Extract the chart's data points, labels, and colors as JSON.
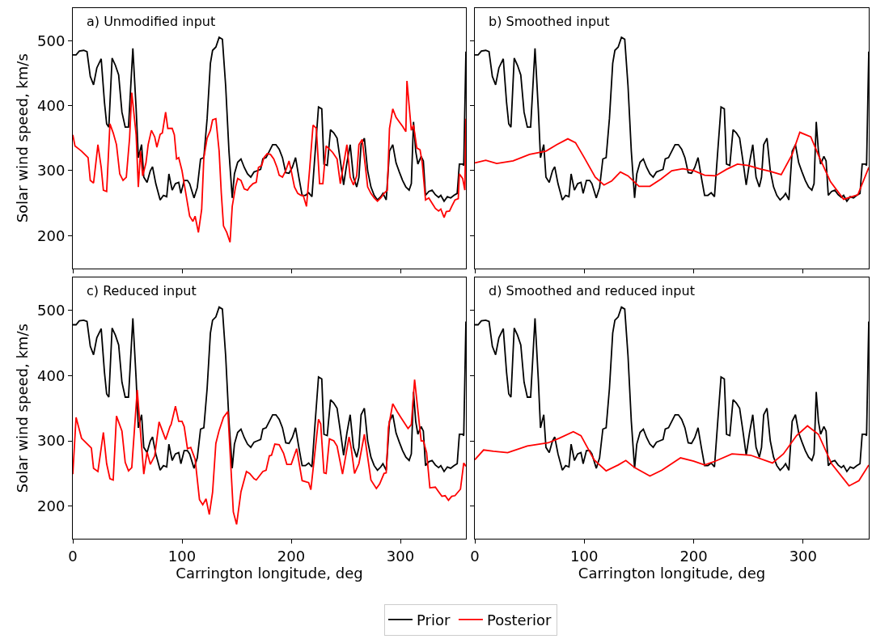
{
  "chart_data": [
    {
      "type": "line",
      "title": "a) Unmodified input",
      "ylabel": "Solar wind speed, km/s",
      "xlim": [
        0,
        360
      ],
      "ylim": [
        150,
        550
      ],
      "xticks": [
        0,
        100,
        200,
        300
      ],
      "yticks": [
        200,
        300,
        400,
        500
      ],
      "tick_labels": "y",
      "legend": "bottom",
      "series": [
        {
          "name": "Prior",
          "color": "#000000",
          "x": [
            0,
            3,
            6,
            10,
            13,
            16,
            19,
            22,
            26,
            29,
            31,
            33,
            36,
            39,
            42,
            45,
            48,
            51,
            55,
            58,
            60,
            63,
            65,
            68,
            71,
            73,
            76,
            80,
            83,
            86,
            88,
            91,
            94,
            97,
            99,
            102,
            105,
            107,
            111,
            114,
            117,
            120,
            123,
            126,
            128,
            131,
            134,
            137,
            140,
            143,
            146,
            148,
            151,
            154,
            157,
            160,
            163,
            166,
            169,
            172,
            174,
            177,
            180,
            183,
            186,
            189,
            192,
            195,
            198,
            201,
            204,
            207,
            210,
            213,
            216,
            219,
            222,
            225,
            228,
            230,
            233,
            236,
            239,
            242,
            245,
            248,
            251,
            254,
            257,
            260,
            262,
            264,
            267,
            270,
            273,
            276,
            279,
            282,
            284,
            287,
            290,
            293,
            296,
            299,
            302,
            305,
            308,
            310,
            312,
            314,
            316,
            319,
            321,
            323,
            326,
            329,
            332,
            335,
            337,
            340,
            343,
            346,
            349,
            352,
            354,
            357,
            358,
            360
          ],
          "values": [
            478,
            478,
            484,
            485,
            483,
            445,
            432,
            458,
            472,
            405,
            372,
            367,
            473,
            462,
            447,
            390,
            367,
            367,
            488,
            395,
            320,
            340,
            290,
            282,
            300,
            306,
            280,
            255,
            262,
            260,
            295,
            270,
            280,
            282,
            265,
            285,
            285,
            280,
            258,
            274,
            318,
            320,
            380,
            465,
            485,
            490,
            505,
            502,
            430,
            330,
            258,
            295,
            313,
            318,
            305,
            295,
            290,
            298,
            300,
            302,
            318,
            320,
            330,
            340,
            340,
            333,
            320,
            297,
            296,
            305,
            320,
            290,
            262,
            262,
            266,
            260,
            330,
            398,
            395,
            310,
            308,
            363,
            358,
            350,
            315,
            278,
            312,
            340,
            290,
            275,
            290,
            340,
            350,
            300,
            275,
            262,
            255,
            260,
            265,
            255,
            330,
            340,
            312,
            298,
            285,
            275,
            270,
            280,
            375,
            330,
            310,
            322,
            315,
            262,
            268,
            270,
            263,
            259,
            262,
            253,
            260,
            258,
            262,
            265,
            310,
            310,
            308,
            483
          ]
        },
        {
          "name": "Posterior",
          "color": "#ff0000",
          "x": [
            0,
            2,
            5,
            8,
            11,
            14,
            16,
            19,
            21,
            23,
            26,
            28,
            31,
            34,
            37,
            40,
            43,
            46,
            49,
            52,
            54,
            58,
            60,
            62,
            64,
            67,
            69,
            72,
            75,
            77,
            80,
            82,
            85,
            87,
            91,
            93,
            95,
            97,
            100,
            102,
            104,
            107,
            110,
            112,
            115,
            118,
            120,
            123,
            126,
            128,
            131,
            134,
            136,
            138,
            141,
            144,
            146,
            149,
            151,
            154,
            157,
            160,
            162,
            165,
            168,
            170,
            173,
            175,
            178,
            181,
            184,
            187,
            189,
            192,
            195,
            198,
            200,
            203,
            206,
            209,
            211,
            214,
            217,
            220,
            223,
            226,
            229,
            232,
            235,
            238,
            242,
            245,
            248,
            251,
            254,
            257,
            260,
            262,
            265,
            268,
            270,
            273,
            276,
            279,
            282,
            285,
            288,
            290,
            293,
            296,
            299,
            302,
            305,
            306,
            310,
            312,
            315,
            318,
            320,
            323,
            326,
            329,
            332,
            335,
            337,
            340,
            342,
            345,
            347,
            350,
            353,
            354,
            357,
            359,
            360
          ],
          "values": [
            355,
            338,
            334,
            330,
            325,
            320,
            285,
            281,
            310,
            340,
            305,
            270,
            268,
            372,
            358,
            340,
            295,
            285,
            290,
            350,
            420,
            355,
            275,
            330,
            292,
            312,
            340,
            362,
            352,
            336,
            356,
            358,
            390,
            365,
            365,
            355,
            318,
            320,
            300,
            280,
            260,
            230,
            222,
            230,
            205,
            240,
            320,
            350,
            362,
            378,
            380,
            330,
            265,
            215,
            205,
            190,
            245,
            275,
            288,
            285,
            272,
            270,
            275,
            280,
            282,
            305,
            308,
            320,
            326,
            325,
            318,
            305,
            293,
            290,
            300,
            315,
            300,
            275,
            265,
            262,
            262,
            245,
            305,
            370,
            365,
            280,
            280,
            338,
            333,
            328,
            318,
            280,
            310,
            340,
            290,
            278,
            292,
            340,
            348,
            305,
            275,
            265,
            258,
            253,
            258,
            265,
            270,
            365,
            395,
            382,
            375,
            368,
            360,
            438,
            362,
            370,
            335,
            332,
            312,
            255,
            258,
            250,
            242,
            238,
            241,
            228,
            237,
            238,
            245,
            255,
            257,
            295,
            288,
            270,
            380
          ]
        }
      ]
    },
    {
      "type": "line",
      "title": "b) Smoothed input",
      "xlim": [
        0,
        360
      ],
      "ylim": [
        150,
        550
      ],
      "xticks": [
        0,
        100,
        200,
        300
      ],
      "yticks": [
        200,
        300,
        400,
        500
      ],
      "tick_labels": false,
      "series": [
        {
          "color": "#000000",
          "x": [
            0,
            3,
            6,
            10,
            13,
            16,
            19,
            22,
            26,
            29,
            31,
            33,
            36,
            39,
            42,
            45,
            48,
            51,
            55,
            58,
            60,
            63,
            65,
            68,
            71,
            73,
            76,
            80,
            83,
            86,
            88,
            91,
            94,
            97,
            99,
            102,
            105,
            107,
            111,
            114,
            117,
            120,
            123,
            126,
            128,
            131,
            134,
            137,
            140,
            143,
            146,
            148,
            151,
            154,
            157,
            160,
            163,
            166,
            169,
            172,
            174,
            177,
            180,
            183,
            186,
            189,
            192,
            195,
            198,
            201,
            204,
            207,
            210,
            213,
            216,
            219,
            222,
            225,
            228,
            230,
            233,
            236,
            239,
            242,
            245,
            248,
            251,
            254,
            257,
            260,
            262,
            264,
            267,
            270,
            273,
            276,
            279,
            282,
            284,
            287,
            290,
            293,
            296,
            299,
            302,
            305,
            308,
            310,
            312,
            314,
            316,
            319,
            321,
            323,
            326,
            329,
            332,
            335,
            337,
            340,
            343,
            346,
            349,
            352,
            354,
            357,
            358,
            360
          ],
          "values": [
            478,
            478,
            484,
            485,
            483,
            445,
            432,
            458,
            472,
            405,
            372,
            367,
            473,
            462,
            447,
            390,
            367,
            367,
            488,
            395,
            320,
            340,
            290,
            282,
            300,
            306,
            280,
            255,
            262,
            260,
            295,
            270,
            280,
            282,
            265,
            285,
            285,
            280,
            258,
            274,
            318,
            320,
            380,
            465,
            485,
            490,
            505,
            502,
            430,
            330,
            258,
            295,
            313,
            318,
            305,
            295,
            290,
            298,
            300,
            302,
            318,
            320,
            330,
            340,
            340,
            333,
            320,
            297,
            296,
            305,
            320,
            290,
            262,
            262,
            266,
            260,
            330,
            398,
            395,
            310,
            308,
            363,
            358,
            350,
            315,
            278,
            312,
            340,
            290,
            275,
            290,
            340,
            350,
            300,
            275,
            262,
            255,
            260,
            265,
            255,
            330,
            340,
            312,
            298,
            285,
            275,
            270,
            280,
            375,
            330,
            310,
            322,
            315,
            262,
            268,
            270,
            263,
            259,
            262,
            253,
            260,
            258,
            262,
            265,
            310,
            310,
            308,
            483
          ]
        },
        {
          "color": "#ff0000",
          "x": [
            0,
            10,
            20,
            35,
            50,
            65,
            75,
            85,
            92,
            100,
            110,
            118,
            125,
            133,
            140,
            150,
            160,
            170,
            180,
            190,
            200,
            210,
            220,
            230,
            240,
            250,
            260,
            270,
            280,
            290,
            297,
            307,
            315,
            325,
            337,
            350,
            360
          ],
          "values": [
            312,
            316,
            311,
            315,
            325,
            330,
            340,
            349,
            343,
            320,
            290,
            278,
            284,
            298,
            292,
            276,
            276,
            287,
            300,
            303,
            300,
            293,
            292,
            302,
            310,
            308,
            303,
            299,
            294,
            325,
            359,
            352,
            320,
            283,
            256,
            263,
            305
          ]
        }
      ]
    },
    {
      "type": "line",
      "title": "c) Reduced input",
      "xlabel": "Carrington longitude, deg",
      "ylabel": "Solar wind speed, km/s",
      "xlim": [
        0,
        360
      ],
      "ylim": [
        150,
        550
      ],
      "xticks": [
        0,
        100,
        200,
        300
      ],
      "yticks": [
        200,
        300,
        400,
        500
      ],
      "series": [
        {
          "color": "#000000",
          "x": [
            0,
            3,
            6,
            10,
            13,
            16,
            19,
            22,
            26,
            29,
            31,
            33,
            36,
            39,
            42,
            45,
            48,
            51,
            55,
            58,
            60,
            63,
            65,
            68,
            71,
            73,
            76,
            80,
            83,
            86,
            88,
            91,
            94,
            97,
            99,
            102,
            105,
            107,
            111,
            114,
            117,
            120,
            123,
            126,
            128,
            131,
            134,
            137,
            140,
            143,
            146,
            148,
            151,
            154,
            157,
            160,
            163,
            166,
            169,
            172,
            174,
            177,
            180,
            183,
            186,
            189,
            192,
            195,
            198,
            201,
            204,
            207,
            210,
            213,
            216,
            219,
            222,
            225,
            228,
            230,
            233,
            236,
            239,
            242,
            245,
            248,
            251,
            254,
            257,
            260,
            262,
            264,
            267,
            270,
            273,
            276,
            279,
            282,
            284,
            287,
            290,
            293,
            296,
            299,
            302,
            305,
            308,
            310,
            312,
            314,
            316,
            319,
            321,
            323,
            326,
            329,
            332,
            335,
            337,
            340,
            343,
            346,
            349,
            352,
            354,
            357,
            358,
            360
          ],
          "values": [
            478,
            478,
            484,
            485,
            483,
            445,
            432,
            458,
            472,
            405,
            372,
            367,
            473,
            462,
            447,
            390,
            367,
            367,
            488,
            395,
            320,
            340,
            290,
            282,
            300,
            306,
            280,
            255,
            262,
            260,
            295,
            270,
            280,
            282,
            265,
            285,
            285,
            280,
            258,
            274,
            318,
            320,
            380,
            465,
            485,
            490,
            505,
            502,
            430,
            330,
            258,
            295,
            313,
            318,
            305,
            295,
            290,
            298,
            300,
            302,
            318,
            320,
            330,
            340,
            340,
            333,
            320,
            297,
            296,
            305,
            320,
            290,
            262,
            262,
            266,
            260,
            330,
            398,
            395,
            310,
            308,
            363,
            358,
            350,
            315,
            278,
            312,
            340,
            290,
            275,
            290,
            340,
            350,
            300,
            275,
            262,
            255,
            260,
            265,
            255,
            330,
            340,
            312,
            298,
            285,
            275,
            270,
            280,
            375,
            330,
            310,
            322,
            315,
            262,
            268,
            270,
            263,
            259,
            262,
            253,
            260,
            258,
            262,
            265,
            310,
            310,
            308,
            483
          ]
        },
        {
          "color": "#ff0000",
          "x": [
            0,
            3,
            8,
            17,
            19,
            23,
            28,
            31,
            34,
            37,
            40,
            45,
            48,
            51,
            54,
            59,
            65,
            68,
            71,
            75,
            79,
            85,
            89,
            90,
            94,
            97,
            100,
            102,
            105,
            108,
            112,
            116,
            119,
            122,
            125,
            128,
            131,
            134,
            138,
            142,
            147,
            150,
            154,
            159,
            162,
            166,
            168,
            174,
            177,
            180,
            182,
            185,
            189,
            193,
            196,
            200,
            205,
            210,
            216,
            218,
            225,
            227,
            230,
            232,
            235,
            239,
            242,
            247,
            253,
            255,
            258,
            262,
            267,
            273,
            278,
            281,
            285,
            287,
            289,
            293,
            297,
            300,
            307,
            310,
            313,
            319,
            321,
            324,
            327,
            332,
            335,
            338,
            341,
            344,
            347,
            350,
            355,
            358,
            360
          ],
          "values": [
            249,
            336,
            304,
            289,
            258,
            253,
            313,
            265,
            242,
            240,
            338,
            315,
            267,
            254,
            259,
            378,
            249,
            283,
            264,
            277,
            329,
            302,
            322,
            325,
            353,
            330,
            330,
            322,
            288,
            290,
            272,
            210,
            202,
            211,
            187,
            221,
            296,
            316,
            336,
            345,
            191,
            172,
            222,
            253,
            250,
            242,
            240,
            253,
            255,
            277,
            278,
            295,
            294,
            281,
            264,
            264,
            288,
            239,
            236,
            225,
            333,
            326,
            251,
            250,
            303,
            300,
            292,
            249,
            306,
            288,
            250,
            265,
            310,
            240,
            227,
            234,
            250,
            251,
            320,
            357,
            345,
            337,
            319,
            325,
            394,
            300,
            300,
            282,
            228,
            229,
            222,
            215,
            216,
            209,
            215,
            216,
            226,
            266,
            261
          ]
        }
      ]
    },
    {
      "type": "line",
      "title": "d) Smoothed and reduced input",
      "xlabel": "Carrington longitude, deg",
      "xlim": [
        0,
        360
      ],
      "ylim": [
        150,
        550
      ],
      "xticks": [
        0,
        100,
        200,
        300
      ],
      "yticks": [
        200,
        300,
        400,
        500
      ],
      "tick_labels": "x",
      "series": [
        {
          "color": "#000000",
          "x": [
            0,
            3,
            6,
            10,
            13,
            16,
            19,
            22,
            26,
            29,
            31,
            33,
            36,
            39,
            42,
            45,
            48,
            51,
            55,
            58,
            60,
            63,
            65,
            68,
            71,
            73,
            76,
            80,
            83,
            86,
            88,
            91,
            94,
            97,
            99,
            102,
            105,
            107,
            111,
            114,
            117,
            120,
            123,
            126,
            128,
            131,
            134,
            137,
            140,
            143,
            146,
            148,
            151,
            154,
            157,
            160,
            163,
            166,
            169,
            172,
            174,
            177,
            180,
            183,
            186,
            189,
            192,
            195,
            198,
            201,
            204,
            207,
            210,
            213,
            216,
            219,
            222,
            225,
            228,
            230,
            233,
            236,
            239,
            242,
            245,
            248,
            251,
            254,
            257,
            260,
            262,
            264,
            267,
            270,
            273,
            276,
            279,
            282,
            284,
            287,
            290,
            293,
            296,
            299,
            302,
            305,
            308,
            310,
            312,
            314,
            316,
            319,
            321,
            323,
            326,
            329,
            332,
            335,
            337,
            340,
            343,
            346,
            349,
            352,
            354,
            357,
            358,
            360
          ],
          "values": [
            478,
            478,
            484,
            485,
            483,
            445,
            432,
            458,
            472,
            405,
            372,
            367,
            473,
            462,
            447,
            390,
            367,
            367,
            488,
            395,
            320,
            340,
            290,
            282,
            300,
            306,
            280,
            255,
            262,
            260,
            295,
            270,
            280,
            282,
            265,
            285,
            285,
            280,
            258,
            274,
            318,
            320,
            380,
            465,
            485,
            490,
            505,
            502,
            430,
            330,
            258,
            295,
            313,
            318,
            305,
            295,
            290,
            298,
            300,
            302,
            318,
            320,
            330,
            340,
            340,
            333,
            320,
            297,
            296,
            305,
            320,
            290,
            262,
            262,
            266,
            260,
            330,
            398,
            395,
            310,
            308,
            363,
            358,
            350,
            315,
            278,
            312,
            340,
            290,
            275,
            290,
            340,
            350,
            300,
            275,
            262,
            255,
            260,
            265,
            255,
            330,
            340,
            312,
            298,
            285,
            275,
            270,
            280,
            375,
            330,
            310,
            322,
            315,
            262,
            268,
            270,
            263,
            259,
            262,
            253,
            260,
            258,
            262,
            265,
            310,
            310,
            308,
            483
          ]
        },
        {
          "color": "#ff0000",
          "x": [
            0,
            8,
            17,
            30,
            48,
            67,
            77,
            90,
            97,
            109,
            120,
            131,
            138,
            146,
            160,
            171,
            188,
            200,
            210,
            220,
            235,
            252,
            272,
            282,
            294,
            304,
            314,
            326,
            342,
            351,
            360
          ],
          "values": [
            271,
            286,
            284,
            282,
            292,
            297,
            304,
            314,
            308,
            271,
            254,
            263,
            270,
            259,
            246,
            255,
            274,
            269,
            263,
            269,
            280,
            278,
            266,
            280,
            308,
            323,
            310,
            265,
            231,
            239,
            263
          ]
        }
      ]
    }
  ]
}
